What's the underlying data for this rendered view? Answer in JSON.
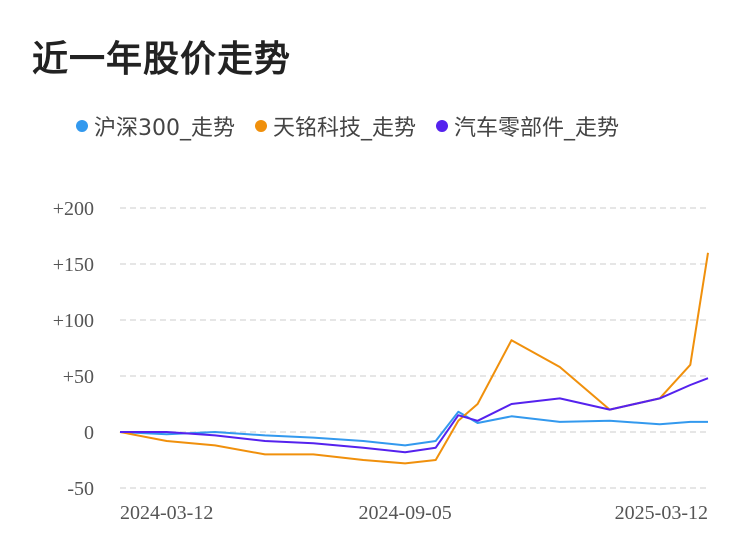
{
  "title": "近一年股价走势",
  "colors": {
    "hs300": "#3399ee",
    "tianming": "#f0900c",
    "auto": "#5522ee",
    "grid": "#e6e6e6"
  },
  "chart_data": {
    "type": "line",
    "title": "近一年股价走势",
    "ylim": [
      -50,
      200
    ],
    "grid": true,
    "legend_position": "top",
    "y_ticks": [
      "+200",
      "+150",
      "+100",
      "+50",
      "0",
      "-50"
    ],
    "x_ticks": [
      "2024-03-12",
      "2024-09-05",
      "2025-03-12"
    ],
    "x": [
      "2024-03-12",
      "2024-04-10",
      "2024-05-10",
      "2024-06-10",
      "2024-07-10",
      "2024-08-10",
      "2024-09-05",
      "2024-09-24",
      "2024-10-08",
      "2024-10-20",
      "2024-11-10",
      "2024-12-10",
      "2025-01-10",
      "2025-02-10",
      "2025-03-01",
      "2025-03-12"
    ],
    "series": [
      {
        "name": "沪深300_走势",
        "values": [
          0,
          -2,
          0,
          -3,
          -5,
          -8,
          -12,
          -8,
          18,
          8,
          14,
          9,
          10,
          7,
          9,
          9
        ]
      },
      {
        "name": "天铭科技_走势",
        "values": [
          0,
          -8,
          -12,
          -20,
          -20,
          -25,
          -28,
          -25,
          10,
          25,
          82,
          58,
          20,
          30,
          60,
          160
        ]
      },
      {
        "name": "汽车零部件_走势",
        "values": [
          0,
          0,
          -3,
          -8,
          -10,
          -14,
          -18,
          -14,
          15,
          10,
          25,
          30,
          20,
          30,
          42,
          48
        ]
      }
    ]
  }
}
